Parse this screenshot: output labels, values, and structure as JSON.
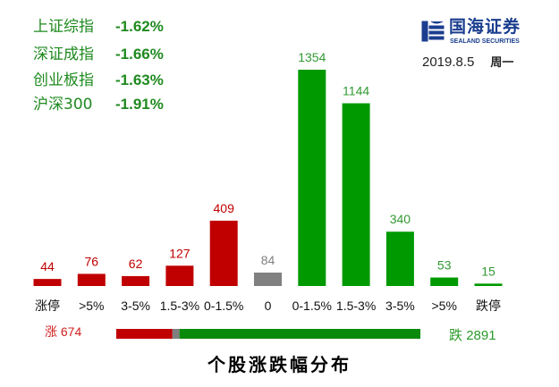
{
  "indices": [
    {
      "name": "上证综指",
      "change": "-1.62%"
    },
    {
      "name": "深证成指",
      "change": "-1.66%"
    },
    {
      "name": "创业板指",
      "change": "-1.63%"
    },
    {
      "name": "沪深300",
      "change": "-1.91%"
    }
  ],
  "logo": {
    "cn": "国海证券",
    "en": "SEALAND SECURITIES"
  },
  "date": "2019.8.5",
  "weekday": "周一",
  "colors": {
    "up": "#C00000",
    "flat": "#808080",
    "down": "#009900",
    "up_text": "#C00000",
    "down_text": "#339933"
  },
  "chart_data": {
    "type": "bar",
    "title": "个股涨跌幅分布",
    "categories": [
      "涨停",
      ">5%",
      "3-5%",
      "1.5-3%",
      "0-1.5%",
      "0",
      "0-1.5%",
      "1.5-3%",
      "3-5%",
      ">5%",
      "跌停"
    ],
    "values": [
      44,
      76,
      62,
      127,
      409,
      84,
      1354,
      1144,
      340,
      53,
      15
    ],
    "groups": [
      "up",
      "up",
      "up",
      "up",
      "up",
      "flat",
      "down",
      "down",
      "down",
      "down",
      "down"
    ],
    "ylim": [
      0,
      1354
    ],
    "summary": {
      "up_label": "涨",
      "up": 674,
      "flat": 84,
      "down_label": "跌",
      "down": 2891
    }
  }
}
